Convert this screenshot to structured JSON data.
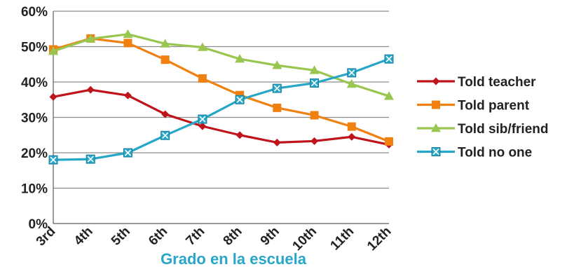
{
  "chart_data": {
    "type": "line",
    "title": "",
    "xlabel": "Grado en la escuela",
    "ylabel": "",
    "categories": [
      "3rd",
      "4th",
      "5th",
      "6th",
      "7th",
      "8th",
      "9th",
      "10th",
      "11th",
      "12th"
    ],
    "yticks": [
      "0%",
      "10%",
      "20%",
      "30%",
      "40%",
      "50%",
      "60%"
    ],
    "ylim": [
      0,
      60
    ],
    "grid": "horizontal",
    "legend_position": "right",
    "series": [
      {
        "name": "Told teacher",
        "color": "#c0141c",
        "marker": "diamond",
        "values": [
          35.8,
          37.8,
          36.2,
          30.9,
          27.5,
          25.0,
          22.9,
          23.3,
          24.5,
          22.3
        ]
      },
      {
        "name": "Told parent",
        "color": "#f08010",
        "marker": "square",
        "values": [
          49.2,
          52.3,
          51.0,
          46.3,
          41.0,
          36.3,
          32.7,
          30.6,
          27.4,
          23.2
        ]
      },
      {
        "name": "Told sib/friend",
        "color": "#98c650",
        "marker": "triangle",
        "values": [
          48.7,
          52.2,
          53.5,
          50.8,
          49.8,
          46.5,
          44.7,
          43.3,
          39.4,
          36.0
        ]
      },
      {
        "name": "Told no one",
        "color": "#28a6c8",
        "marker": "x-square",
        "values": [
          18.0,
          18.2,
          20.0,
          24.9,
          29.5,
          35.0,
          38.2,
          39.7,
          42.6,
          46.5
        ]
      }
    ]
  }
}
